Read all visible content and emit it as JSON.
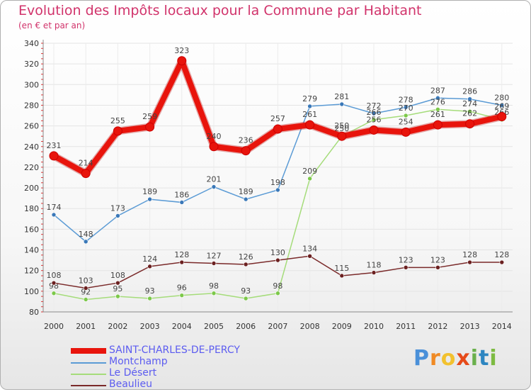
{
  "title": "Evolution des Impôts locaux pour la Commune par Habitant",
  "subtitle": "(en € et par an)",
  "brand": {
    "letters": [
      {
        "ch": "P",
        "color": "#4a90d9"
      },
      {
        "ch": "r",
        "color": "#f08a24"
      },
      {
        "ch": "o",
        "color": "#f2c12e"
      },
      {
        "ch": "x",
        "color": "#e64a19"
      },
      {
        "ch": "i",
        "color": "#6ab04c"
      },
      {
        "ch": "t",
        "color": "#2e86c1"
      },
      {
        "ch": "i",
        "color": "#7dbb42"
      }
    ]
  },
  "chart_data": {
    "type": "line",
    "title": "Evolution des Impôts locaux pour la Commune par Habitant",
    "xlabel": "",
    "ylabel": "(en € et par an)",
    "ylim": [
      80,
      340
    ],
    "yticks": [
      80,
      100,
      120,
      140,
      160,
      180,
      200,
      220,
      240,
      260,
      280,
      300,
      320,
      340
    ],
    "x": [
      "2000",
      "2001",
      "2002",
      "2003",
      "2004",
      "2005",
      "2006",
      "2007",
      "2008",
      "2009",
      "2010",
      "2011",
      "2012",
      "2013",
      "2014"
    ],
    "grid": true,
    "series": [
      {
        "name": "Montchamp",
        "color": "#5b9bd5",
        "marker": "#3a78b8",
        "values": [
          174,
          148,
          173,
          189,
          186,
          201,
          189,
          198,
          279,
          281,
          272,
          278,
          287,
          286,
          280
        ],
        "labels": [
          "174",
          "148",
          "173",
          "189",
          "186",
          "201",
          "189",
          "198",
          "279",
          "281",
          "272",
          "278",
          "287",
          "286",
          "280"
        ]
      },
      {
        "name": "Le Désert",
        "color": "#a5dc7a",
        "marker": "#7cc84a",
        "values": [
          98,
          92,
          95,
          93,
          96,
          98,
          93,
          98,
          209,
          250,
          266,
          270,
          276,
          274,
          266
        ],
        "labels": [
          "98",
          "92",
          "95",
          "93",
          "96",
          "98",
          "93",
          "98",
          "209",
          "250",
          "266",
          "270",
          "276",
          "274",
          "266"
        ]
      },
      {
        "name": "Beaulieu",
        "color": "#7a2a2a",
        "marker": "#6b2020",
        "values": [
          108,
          103,
          108,
          124,
          128,
          127,
          126,
          130,
          134,
          115,
          118,
          123,
          123,
          128,
          128
        ],
        "labels": [
          "108",
          "103",
          "108",
          "124",
          "128",
          "127",
          "126",
          "130",
          "134",
          "115",
          "118",
          "123",
          "123",
          "128",
          "128"
        ]
      },
      {
        "name": "SAINT-CHARLES-DE-PERCY",
        "color": "#e8140c",
        "marker": "#e8140c",
        "values": [
          231,
          214,
          255,
          259,
          323,
          240,
          236,
          257,
          261,
          250,
          256,
          254,
          261,
          262,
          269
        ],
        "labels": [
          "231",
          "214",
          "255",
          "259",
          "323",
          "240",
          "236",
          "257",
          "261",
          "250",
          "256",
          "254",
          "261",
          "262",
          "269"
        ]
      }
    ],
    "legend": [
      {
        "name": "SAINT-CHARLES-DE-PERCY",
        "color": "#e8140c",
        "text_color": "#5c5cf0"
      },
      {
        "name": "Montchamp",
        "color": "#5b9bd5",
        "text_color": "#5c5cf0"
      },
      {
        "name": "Le Désert",
        "color": "#a5dc7a",
        "text_color": "#5c5cf0"
      },
      {
        "name": "Beaulieu",
        "color": "#7a2a2a",
        "text_color": "#5c5cf0"
      }
    ]
  }
}
